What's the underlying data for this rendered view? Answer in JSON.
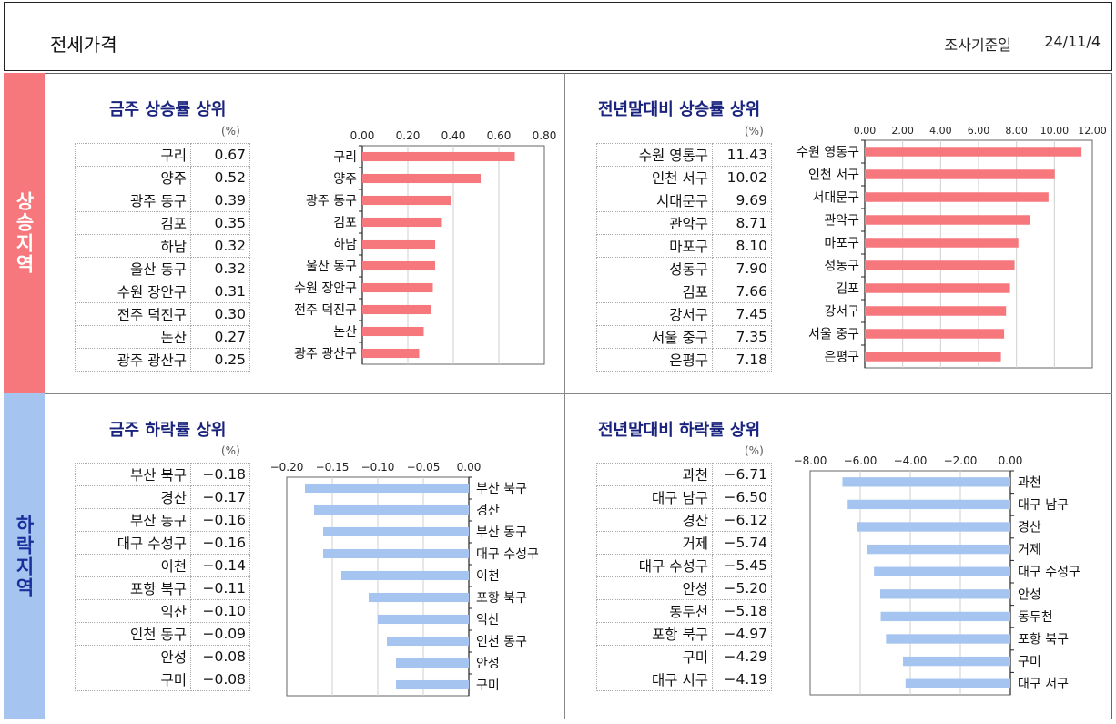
{
  "header": {
    "title": "전세가격",
    "date_label": "조사기준일",
    "date_value": "24/11/4"
  },
  "sections": {
    "rise_label": "상승지역",
    "fall_label": "하락지역"
  },
  "colors": {
    "rise": "#f6787d",
    "fall": "#a5c4ef",
    "title": "#1a237e"
  },
  "unit": "(%)",
  "chart_data": [
    {
      "id": "weekly_rise",
      "type": "bar",
      "title": "금주 상승률 상위",
      "categories": [
        "구리",
        "양주",
        "광주 동구",
        "김포",
        "하남",
        "울산 동구",
        "수원 장안구",
        "전주 덕진구",
        "논산",
        "광주 광산구"
      ],
      "values": [
        0.67,
        0.52,
        0.39,
        0.35,
        0.32,
        0.32,
        0.31,
        0.3,
        0.27,
        0.25
      ],
      "xlim": [
        0,
        0.8
      ],
      "ticks": [
        "0.00",
        "0.20",
        "0.40",
        "0.60",
        "0.80"
      ],
      "color": "#f6787d"
    },
    {
      "id": "ytd_rise",
      "type": "bar",
      "title": "전년말대비 상승률 상위",
      "categories": [
        "수원 영통구",
        "인천 서구",
        "서대문구",
        "관악구",
        "마포구",
        "성동구",
        "김포",
        "강서구",
        "서울 중구",
        "은평구"
      ],
      "values": [
        11.43,
        10.02,
        9.69,
        8.71,
        8.1,
        7.9,
        7.66,
        7.45,
        7.35,
        7.18
      ],
      "xlim": [
        0,
        12
      ],
      "ticks": [
        "0.00",
        "2.00",
        "4.00",
        "6.00",
        "8.00",
        "10.00",
        "12.00"
      ],
      "color": "#f6787d"
    },
    {
      "id": "weekly_fall",
      "type": "bar",
      "title": "금주 하락률 상위",
      "categories": [
        "부산 북구",
        "경산",
        "부산 동구",
        "대구 수성구",
        "이천",
        "포항 북구",
        "익산",
        "인천 동구",
        "안성",
        "구미"
      ],
      "values": [
        -0.18,
        -0.17,
        -0.16,
        -0.16,
        -0.14,
        -0.11,
        -0.1,
        -0.09,
        -0.08,
        -0.08
      ],
      "xlim": [
        -0.2,
        0
      ],
      "ticks": [
        "−0.20",
        "−0.15",
        "−0.10",
        "−0.05",
        "0.00"
      ],
      "color": "#a5c4ef"
    },
    {
      "id": "ytd_fall",
      "type": "bar",
      "title": "전년말대비 하락률 상위",
      "categories": [
        "과천",
        "대구 남구",
        "경산",
        "거제",
        "대구 수성구",
        "안성",
        "동두천",
        "포항 북구",
        "구미",
        "대구 서구"
      ],
      "values": [
        -6.71,
        -6.5,
        -6.12,
        -5.74,
        -5.45,
        -5.2,
        -5.18,
        -4.97,
        -4.29,
        -4.19
      ],
      "xlim": [
        -8,
        0
      ],
      "ticks": [
        "−8.00",
        "−6.00",
        "−4.00",
        "−2.00",
        "0.00"
      ],
      "color": "#a5c4ef"
    }
  ],
  "tables": {
    "weekly_rise": {
      "names": [
        "구리",
        "양주",
        "광주 동구",
        "김포",
        "하남",
        "울산 동구",
        "수원 장안구",
        "전주 덕진구",
        "논산",
        "광주 광산구"
      ],
      "values": [
        "0.67",
        "0.52",
        "0.39",
        "0.35",
        "0.32",
        "0.32",
        "0.31",
        "0.30",
        "0.27",
        "0.25"
      ]
    },
    "ytd_rise": {
      "names": [
        "수원 영통구",
        "인천 서구",
        "서대문구",
        "관악구",
        "마포구",
        "성동구",
        "김포",
        "강서구",
        "서울 중구",
        "은평구"
      ],
      "values": [
        "11.43",
        "10.02",
        "9.69",
        "8.71",
        "8.10",
        "7.90",
        "7.66",
        "7.45",
        "7.35",
        "7.18"
      ]
    },
    "weekly_fall": {
      "names": [
        "부산 북구",
        "경산",
        "부산 동구",
        "대구 수성구",
        "이천",
        "포항 북구",
        "익산",
        "인천 동구",
        "안성",
        "구미"
      ],
      "values": [
        "−0.18",
        "−0.17",
        "−0.16",
        "−0.16",
        "−0.14",
        "−0.11",
        "−0.10",
        "−0.09",
        "−0.08",
        "−0.08"
      ]
    },
    "ytd_fall": {
      "names": [
        "과천",
        "대구 남구",
        "경산",
        "거제",
        "대구 수성구",
        "안성",
        "동두천",
        "포항 북구",
        "구미",
        "대구 서구"
      ],
      "values": [
        "−6.71",
        "−6.50",
        "−6.12",
        "−5.74",
        "−5.45",
        "−5.20",
        "−5.18",
        "−4.97",
        "−4.29",
        "−4.19"
      ]
    }
  }
}
